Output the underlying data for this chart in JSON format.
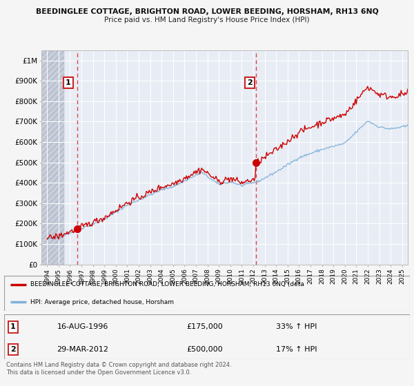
{
  "title_line1": "BEEDINGLEE COTTAGE, BRIGHTON ROAD, LOWER BEEDING, HORSHAM, RH13 6NQ",
  "title_line2": "Price paid vs. HM Land Registry's House Price Index (HPI)",
  "background_color": "#f5f5f5",
  "plot_bg_color": "#e8edf5",
  "red_line_color": "#cc0000",
  "blue_line_color": "#7fb0d8",
  "dashed_line_color": "#dd4444",
  "hatch_bg_color": "#d0d5e0",
  "legend_label1": "BEEDINGLEE COTTAGE, BRIGHTON ROAD, LOWER BEEDING, HORSHAM, RH13 6NQ (deta",
  "legend_label2": "HPI: Average price, detached house, Horsham",
  "table_data": [
    [
      "1",
      "16-AUG-1996",
      "£175,000",
      "33% ↑ HPI"
    ],
    [
      "2",
      "29-MAR-2012",
      "£500,000",
      "17% ↑ HPI"
    ]
  ],
  "footnote": "Contains HM Land Registry data © Crown copyright and database right 2024.\nThis data is licensed under the Open Government Licence v3.0.",
  "ylim": [
    0,
    1050000
  ],
  "xlim": [
    1993.5,
    2025.5
  ],
  "yticks": [
    0,
    100000,
    200000,
    300000,
    400000,
    500000,
    600000,
    700000,
    800000,
    900000,
    1000000
  ],
  "ytick_labels": [
    "£0",
    "£100K",
    "£200K",
    "£300K",
    "£400K",
    "£500K",
    "£600K",
    "£700K",
    "£800K",
    "£900K",
    "£1M"
  ],
  "xticks": [
    1994,
    1995,
    1996,
    1997,
    1998,
    1999,
    2000,
    2001,
    2002,
    2003,
    2004,
    2005,
    2006,
    2007,
    2008,
    2009,
    2010,
    2011,
    2012,
    2013,
    2014,
    2015,
    2016,
    2017,
    2018,
    2019,
    2020,
    2021,
    2022,
    2023,
    2024,
    2025
  ],
  "marker1_x": 1996.62,
  "marker1_y": 175000,
  "marker2_x": 2012.24,
  "marker2_y": 500000,
  "ann1_x": 1995.85,
  "ann1_y": 890000,
  "ann2_x": 2011.7,
  "ann2_y": 890000
}
